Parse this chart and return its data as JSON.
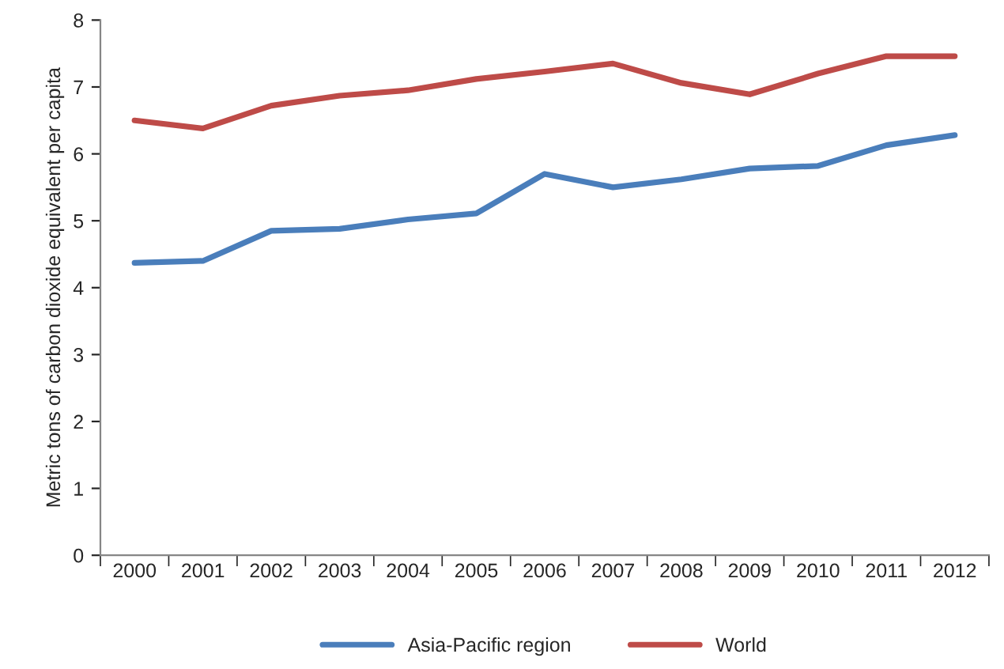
{
  "chart_data": {
    "type": "line",
    "ylabel": "Metric tons of carbon dioxide equivalent per capita",
    "categories": [
      "2000",
      "2001",
      "2002",
      "2003",
      "2004",
      "2005",
      "2006",
      "2007",
      "2008",
      "2009",
      "2010",
      "2011",
      "2012"
    ],
    "series": [
      {
        "name": "Asia-Pacific region",
        "color": "#4a7ebb",
        "values": [
          4.37,
          4.4,
          4.85,
          4.88,
          5.02,
          5.11,
          5.7,
          5.5,
          5.62,
          5.78,
          5.82,
          6.13,
          6.28
        ]
      },
      {
        "name": "World",
        "color": "#be4b48",
        "values": [
          6.5,
          6.38,
          6.72,
          6.87,
          6.95,
          7.12,
          7.23,
          7.35,
          7.06,
          6.89,
          7.2,
          7.46,
          7.46
        ]
      }
    ],
    "ylim": [
      0,
      8
    ],
    "yticks": [
      0,
      1,
      2,
      3,
      4,
      5,
      6,
      7,
      8
    ],
    "grid": false,
    "legend": "bottom",
    "marker": "none",
    "line_style": "solid"
  }
}
